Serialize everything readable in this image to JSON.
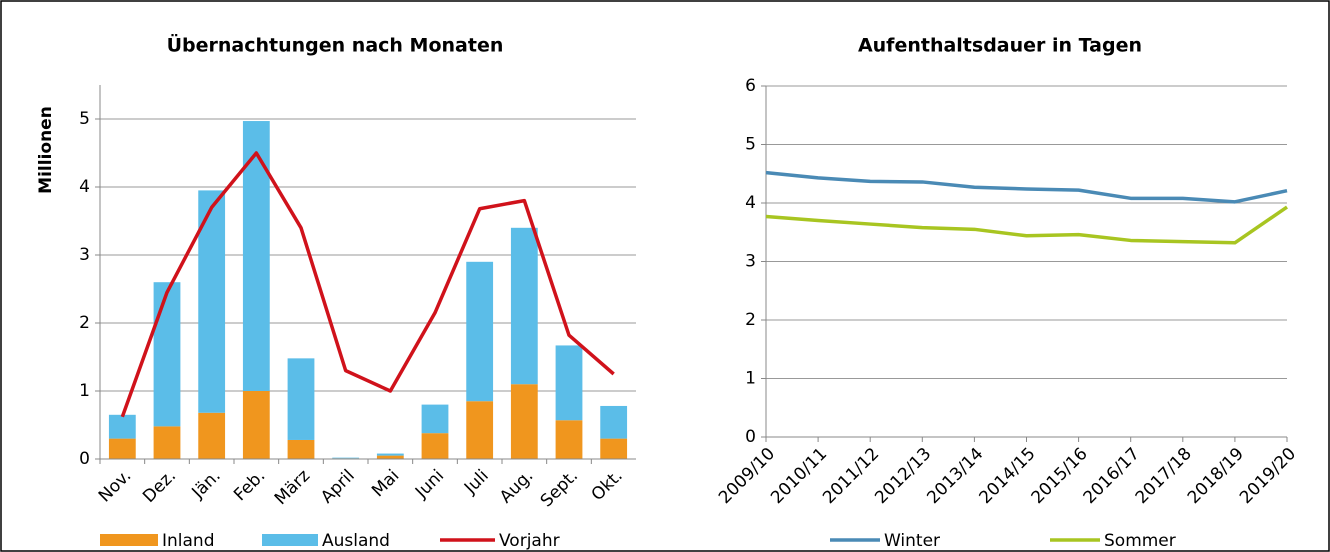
{
  "chart_data": [
    {
      "type": "bar",
      "title": "Übernachtungen nach Monaten",
      "y_label": "Millionen",
      "stacked": true,
      "categories": [
        "Nov.",
        "Dez.",
        "Jän.",
        "Feb.",
        "März",
        "April",
        "Mai",
        "Juni",
        "Juli",
        "Aug.",
        "Sept.",
        "Okt."
      ],
      "series": [
        {
          "name": "Inland",
          "type": "bar",
          "color": "#f0961e",
          "values": [
            0.3,
            0.48,
            0.68,
            1.0,
            0.28,
            0.01,
            0.05,
            0.38,
            0.85,
            1.1,
            0.57,
            0.3
          ]
        },
        {
          "name": "Ausland",
          "type": "bar",
          "color": "#5bbde8",
          "values": [
            0.35,
            2.12,
            3.27,
            3.97,
            1.2,
            0.01,
            0.03,
            0.42,
            2.05,
            2.3,
            1.1,
            0.48
          ]
        },
        {
          "name": "Vorjahr",
          "type": "line",
          "color": "#d0121b",
          "values": [
            0.62,
            2.45,
            3.7,
            4.5,
            3.4,
            1.3,
            1.0,
            2.15,
            3.68,
            3.8,
            1.82,
            1.25
          ]
        }
      ],
      "ylim": [
        0,
        5.5
      ],
      "yticks": [
        0,
        1,
        2,
        3,
        4,
        5
      ],
      "grid": true
    },
    {
      "type": "line",
      "title": "Aufenthaltsdauer in Tagen",
      "categories": [
        "2009/10",
        "2010/11",
        "2011/12",
        "2012/13",
        "2013/14",
        "2014/15",
        "2015/16",
        "2016/17",
        "2017/18",
        "2018/19",
        "2019/20"
      ],
      "series": [
        {
          "name": "Winter",
          "color": "#4a8ab5",
          "values": [
            4.52,
            4.43,
            4.37,
            4.36,
            4.27,
            4.24,
            4.22,
            4.08,
            4.08,
            4.02,
            4.21
          ]
        },
        {
          "name": "Sommer",
          "color": "#a8c521",
          "values": [
            3.77,
            3.7,
            3.64,
            3.58,
            3.55,
            3.44,
            3.46,
            3.36,
            3.34,
            3.32,
            3.93
          ]
        }
      ],
      "ylim": [
        0,
        6
      ],
      "yticks": [
        0,
        1,
        2,
        3,
        4,
        5,
        6
      ],
      "grid": true
    }
  ]
}
